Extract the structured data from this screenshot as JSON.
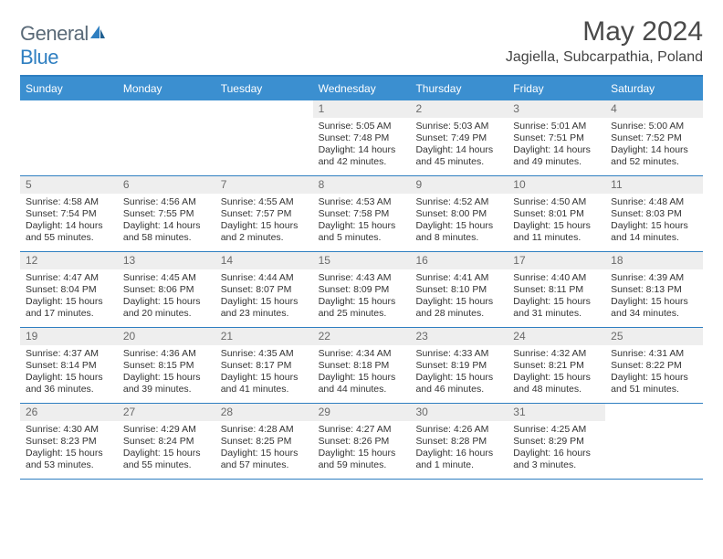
{
  "brand": {
    "general": "General",
    "blue": "Blue"
  },
  "title": "May 2024",
  "location": "Jagiella, Subcarpathia, Poland",
  "colors": {
    "accent": "#3b8fd0",
    "border": "#2f7fc1",
    "daynum_bg": "#eeeeee",
    "text": "#333333"
  },
  "day_headers": [
    "Sunday",
    "Monday",
    "Tuesday",
    "Wednesday",
    "Thursday",
    "Friday",
    "Saturday"
  ],
  "weeks": [
    [
      {
        "n": "",
        "sr": "",
        "ss": "",
        "dl": ""
      },
      {
        "n": "",
        "sr": "",
        "ss": "",
        "dl": ""
      },
      {
        "n": "",
        "sr": "",
        "ss": "",
        "dl": ""
      },
      {
        "n": "1",
        "sr": "5:05 AM",
        "ss": "7:48 PM",
        "dl": "14 hours and 42 minutes."
      },
      {
        "n": "2",
        "sr": "5:03 AM",
        "ss": "7:49 PM",
        "dl": "14 hours and 45 minutes."
      },
      {
        "n": "3",
        "sr": "5:01 AM",
        "ss": "7:51 PM",
        "dl": "14 hours and 49 minutes."
      },
      {
        "n": "4",
        "sr": "5:00 AM",
        "ss": "7:52 PM",
        "dl": "14 hours and 52 minutes."
      }
    ],
    [
      {
        "n": "5",
        "sr": "4:58 AM",
        "ss": "7:54 PM",
        "dl": "14 hours and 55 minutes."
      },
      {
        "n": "6",
        "sr": "4:56 AM",
        "ss": "7:55 PM",
        "dl": "14 hours and 58 minutes."
      },
      {
        "n": "7",
        "sr": "4:55 AM",
        "ss": "7:57 PM",
        "dl": "15 hours and 2 minutes."
      },
      {
        "n": "8",
        "sr": "4:53 AM",
        "ss": "7:58 PM",
        "dl": "15 hours and 5 minutes."
      },
      {
        "n": "9",
        "sr": "4:52 AM",
        "ss": "8:00 PM",
        "dl": "15 hours and 8 minutes."
      },
      {
        "n": "10",
        "sr": "4:50 AM",
        "ss": "8:01 PM",
        "dl": "15 hours and 11 minutes."
      },
      {
        "n": "11",
        "sr": "4:48 AM",
        "ss": "8:03 PM",
        "dl": "15 hours and 14 minutes."
      }
    ],
    [
      {
        "n": "12",
        "sr": "4:47 AM",
        "ss": "8:04 PM",
        "dl": "15 hours and 17 minutes."
      },
      {
        "n": "13",
        "sr": "4:45 AM",
        "ss": "8:06 PM",
        "dl": "15 hours and 20 minutes."
      },
      {
        "n": "14",
        "sr": "4:44 AM",
        "ss": "8:07 PM",
        "dl": "15 hours and 23 minutes."
      },
      {
        "n": "15",
        "sr": "4:43 AM",
        "ss": "8:09 PM",
        "dl": "15 hours and 25 minutes."
      },
      {
        "n": "16",
        "sr": "4:41 AM",
        "ss": "8:10 PM",
        "dl": "15 hours and 28 minutes."
      },
      {
        "n": "17",
        "sr": "4:40 AM",
        "ss": "8:11 PM",
        "dl": "15 hours and 31 minutes."
      },
      {
        "n": "18",
        "sr": "4:39 AM",
        "ss": "8:13 PM",
        "dl": "15 hours and 34 minutes."
      }
    ],
    [
      {
        "n": "19",
        "sr": "4:37 AM",
        "ss": "8:14 PM",
        "dl": "15 hours and 36 minutes."
      },
      {
        "n": "20",
        "sr": "4:36 AM",
        "ss": "8:15 PM",
        "dl": "15 hours and 39 minutes."
      },
      {
        "n": "21",
        "sr": "4:35 AM",
        "ss": "8:17 PM",
        "dl": "15 hours and 41 minutes."
      },
      {
        "n": "22",
        "sr": "4:34 AM",
        "ss": "8:18 PM",
        "dl": "15 hours and 44 minutes."
      },
      {
        "n": "23",
        "sr": "4:33 AM",
        "ss": "8:19 PM",
        "dl": "15 hours and 46 minutes."
      },
      {
        "n": "24",
        "sr": "4:32 AM",
        "ss": "8:21 PM",
        "dl": "15 hours and 48 minutes."
      },
      {
        "n": "25",
        "sr": "4:31 AM",
        "ss": "8:22 PM",
        "dl": "15 hours and 51 minutes."
      }
    ],
    [
      {
        "n": "26",
        "sr": "4:30 AM",
        "ss": "8:23 PM",
        "dl": "15 hours and 53 minutes."
      },
      {
        "n": "27",
        "sr": "4:29 AM",
        "ss": "8:24 PM",
        "dl": "15 hours and 55 minutes."
      },
      {
        "n": "28",
        "sr": "4:28 AM",
        "ss": "8:25 PM",
        "dl": "15 hours and 57 minutes."
      },
      {
        "n": "29",
        "sr": "4:27 AM",
        "ss": "8:26 PM",
        "dl": "15 hours and 59 minutes."
      },
      {
        "n": "30",
        "sr": "4:26 AM",
        "ss": "8:28 PM",
        "dl": "16 hours and 1 minute."
      },
      {
        "n": "31",
        "sr": "4:25 AM",
        "ss": "8:29 PM",
        "dl": "16 hours and 3 minutes."
      },
      {
        "n": "",
        "sr": "",
        "ss": "",
        "dl": ""
      }
    ]
  ],
  "labels": {
    "sunrise": "Sunrise:",
    "sunset": "Sunset:",
    "daylight": "Daylight:"
  }
}
